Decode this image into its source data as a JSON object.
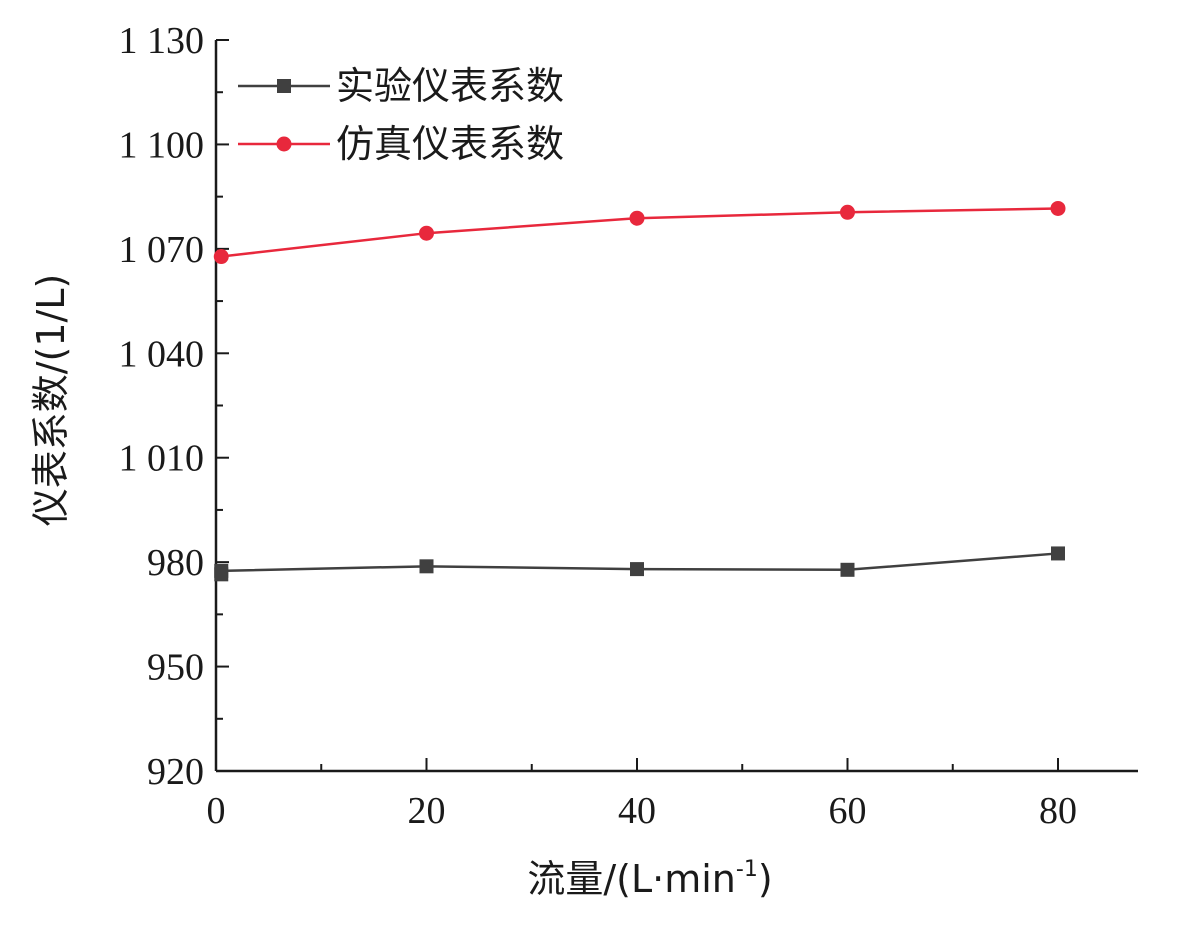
{
  "chart_data": {
    "type": "line",
    "xlabel": "流量/(L·min",
    "xlabel_sup": "-1",
    "xlabel_tail": ")",
    "ylabel": "仪表系数/(1/L)",
    "xlim": [
      0,
      88
    ],
    "ylim": [
      920,
      1130
    ],
    "x_ticks": [
      0,
      20,
      40,
      60,
      80
    ],
    "x_tick_labels": [
      "0",
      "20",
      "40",
      "60",
      "80"
    ],
    "y_ticks": [
      920,
      950,
      980,
      1010,
      1040,
      1070,
      1100,
      1130
    ],
    "y_tick_labels": [
      "920",
      "950",
      "980",
      "1 010",
      "1 040",
      "1 070",
      "1 100",
      "1 130"
    ],
    "legend_position": "top-left",
    "grid": false,
    "series": [
      {
        "name": "实验仪表系数",
        "color": "#404040",
        "marker": "square",
        "points": [
          [
            0.5,
            976.5
          ],
          [
            0.5,
            977.5
          ],
          [
            20,
            978.8
          ],
          [
            40,
            978.0
          ],
          [
            60,
            977.8
          ],
          [
            80,
            982.5
          ]
        ]
      },
      {
        "name": "仿真仪表系数",
        "color": "#e8283c",
        "marker": "circle",
        "points": [
          [
            0.5,
            1067.8
          ],
          [
            20,
            1074.5
          ],
          [
            40,
            1078.8
          ],
          [
            60,
            1080.5
          ],
          [
            80,
            1081.6
          ]
        ]
      }
    ]
  }
}
